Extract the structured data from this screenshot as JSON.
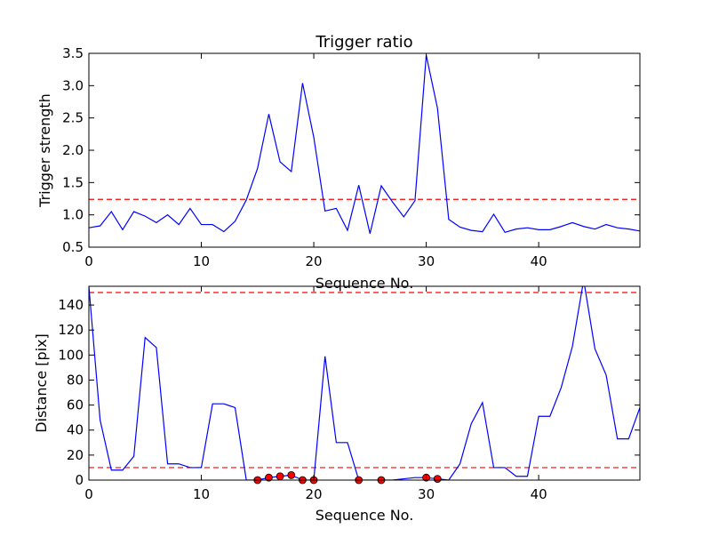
{
  "chart_data": [
    {
      "type": "line",
      "title": "Trigger ratio",
      "xlabel": "Sequence No.",
      "ylabel": "Trigger strength",
      "xlim": [
        0,
        49
      ],
      "ylim": [
        0.5,
        3.5
      ],
      "xticks": [
        0,
        10,
        20,
        30,
        40
      ],
      "yticks": [
        0.5,
        1.0,
        1.5,
        2.0,
        2.5,
        3.0,
        3.5
      ],
      "ytick_labels": [
        "0.5",
        "1.0",
        "1.5",
        "2.0",
        "2.5",
        "3.0",
        "3.5"
      ],
      "grid": false,
      "series": [
        {
          "color": "#0000ff",
          "x": [
            0,
            1,
            2,
            3,
            4,
            5,
            6,
            7,
            8,
            9,
            10,
            11,
            12,
            13,
            14,
            15,
            16,
            17,
            18,
            19,
            20,
            21,
            22,
            23,
            24,
            25,
            26,
            27,
            28,
            29,
            30,
            31,
            32,
            33,
            34,
            35,
            36,
            37,
            38,
            39,
            40,
            41,
            42,
            43,
            44,
            45,
            46,
            47,
            48,
            49
          ],
          "y": [
            0.8,
            0.83,
            1.05,
            0.77,
            1.05,
            0.98,
            0.88,
            1.0,
            0.85,
            1.1,
            0.85,
            0.85,
            0.74,
            0.9,
            1.23,
            1.72,
            2.56,
            1.82,
            1.67,
            3.04,
            2.2,
            1.06,
            1.1,
            0.76,
            1.46,
            0.71,
            1.45,
            1.2,
            0.97,
            1.22,
            3.47,
            2.65,
            0.93,
            0.81,
            0.76,
            0.74,
            1.01,
            0.73,
            0.78,
            0.8,
            0.77,
            0.77,
            0.82,
            0.88,
            0.82,
            0.78,
            0.85,
            0.8,
            0.78,
            0.75
          ]
        }
      ],
      "hlines": [
        {
          "y": 1.24,
          "color": "#ff0000",
          "style": "dashed"
        }
      ]
    },
    {
      "type": "line",
      "title": "",
      "xlabel": "Sequence No.",
      "ylabel": "Distance [pix]",
      "xlim": [
        0,
        49
      ],
      "ylim": [
        0,
        155
      ],
      "xticks": [
        0,
        10,
        20,
        30,
        40
      ],
      "yticks": [
        0,
        20,
        40,
        60,
        80,
        100,
        120,
        140
      ],
      "ytick_labels": [
        "0",
        "20",
        "40",
        "60",
        "80",
        "100",
        "120",
        "140"
      ],
      "grid": false,
      "series": [
        {
          "color": "#0000ff",
          "x": [
            0,
            1,
            2,
            3,
            4,
            5,
            6,
            7,
            8,
            9,
            10,
            11,
            12,
            13,
            14,
            15,
            16,
            17,
            18,
            19,
            20,
            21,
            22,
            23,
            24,
            25,
            26,
            27,
            28,
            29,
            30,
            31,
            32,
            33,
            34,
            35,
            36,
            37,
            38,
            39,
            40,
            41,
            42,
            43,
            44,
            45,
            46,
            47,
            48,
            49
          ],
          "y": [
            155,
            48,
            8,
            8,
            19,
            114,
            106,
            13,
            13,
            10,
            10,
            61,
            61,
            58,
            0,
            0,
            2,
            3,
            4,
            0,
            0,
            99,
            30,
            30,
            0,
            0,
            0,
            0,
            1,
            2,
            2,
            1,
            0,
            13,
            45,
            62,
            10,
            10,
            3,
            3,
            51,
            51,
            74,
            107,
            160,
            105,
            84,
            33,
            33,
            58
          ]
        }
      ],
      "markers": {
        "color": "#ff0000",
        "edge": "#000000",
        "x": [
          15,
          16,
          17,
          18,
          19,
          20,
          24,
          26,
          30,
          31
        ],
        "y": [
          0,
          2,
          3,
          4,
          0,
          0,
          0,
          0,
          2,
          1
        ]
      },
      "hlines": [
        {
          "y": 150,
          "color": "#ff0000",
          "style": "dashed"
        },
        {
          "y": 10,
          "color": "#ff0000",
          "style": "dashed"
        }
      ]
    }
  ]
}
